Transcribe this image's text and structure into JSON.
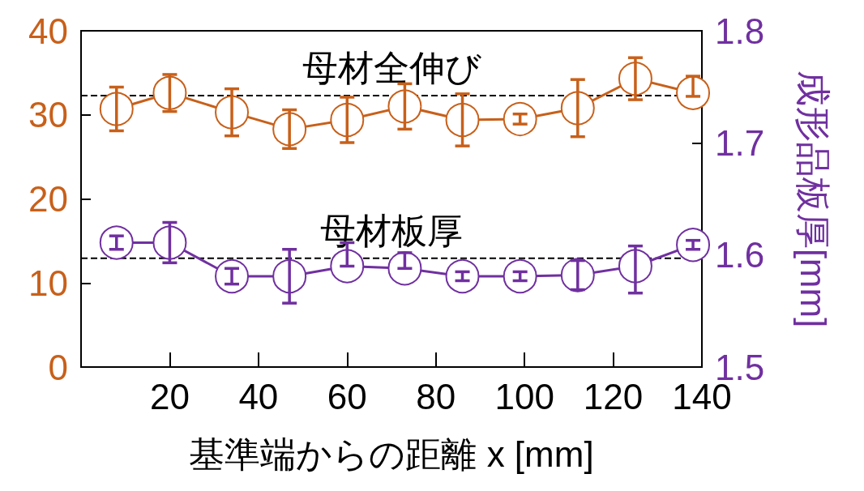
{
  "chart_data": {
    "type": "line",
    "xlabel": "基準端からの距離 x [mm]",
    "y2label": "成形品板厚[mm]",
    "x": [
      8,
      20,
      34,
      47,
      60,
      73,
      86,
      99,
      112,
      125,
      138
    ],
    "xlim": [
      0,
      140
    ],
    "xticks": [
      {
        "value": 0,
        "label": null
      },
      20,
      40,
      60,
      80,
      100,
      120,
      140
    ],
    "ylim": [
      0,
      40
    ],
    "yticks": [
      0,
      10,
      20,
      30,
      40
    ],
    "y2lim": [
      1.5,
      1.8
    ],
    "y2ticks": [
      1.5,
      1.6,
      1.7,
      1.8
    ],
    "grid": false,
    "marker": "circle",
    "line_style": "solid",
    "series": [
      {
        "color": "#c8601a",
        "values": [
          30.7,
          32.6,
          30.3,
          28.3,
          29.4,
          31.0,
          29.4,
          29.5,
          30.8,
          34.3,
          32.6
        ],
        "errors": [
          2.6,
          2.2,
          2.8,
          2.3,
          2.7,
          2.7,
          3.1,
          0.6,
          3.4,
          2.5,
          [
            32.2,
            34.6
          ]
        ]
      },
      {
        "color": "#7030a0",
        "axis": "y2",
        "values": [
          1.611,
          1.611,
          1.581,
          1.581,
          1.59,
          1.588,
          1.581,
          1.581,
          1.582,
          1.59,
          1.609
        ],
        "errors": [
          0.006,
          0.018,
          0.007,
          0.024,
          [
            1.59,
            1.611
          ],
          [
            1.588,
            1.602
          ],
          0.004,
          0.004,
          0.013,
          [
            1.566,
            1.608
          ],
          0.004
        ]
      }
    ],
    "ref_lines": [
      {
        "axis": "y",
        "value": 32.3,
        "label": "母材全伸び",
        "color": "#000000",
        "line_style": "dashed"
      },
      {
        "axis": "y2",
        "value": 1.597,
        "label": "母材板厚",
        "color": "#000000",
        "line_style": "dashed"
      }
    ]
  }
}
